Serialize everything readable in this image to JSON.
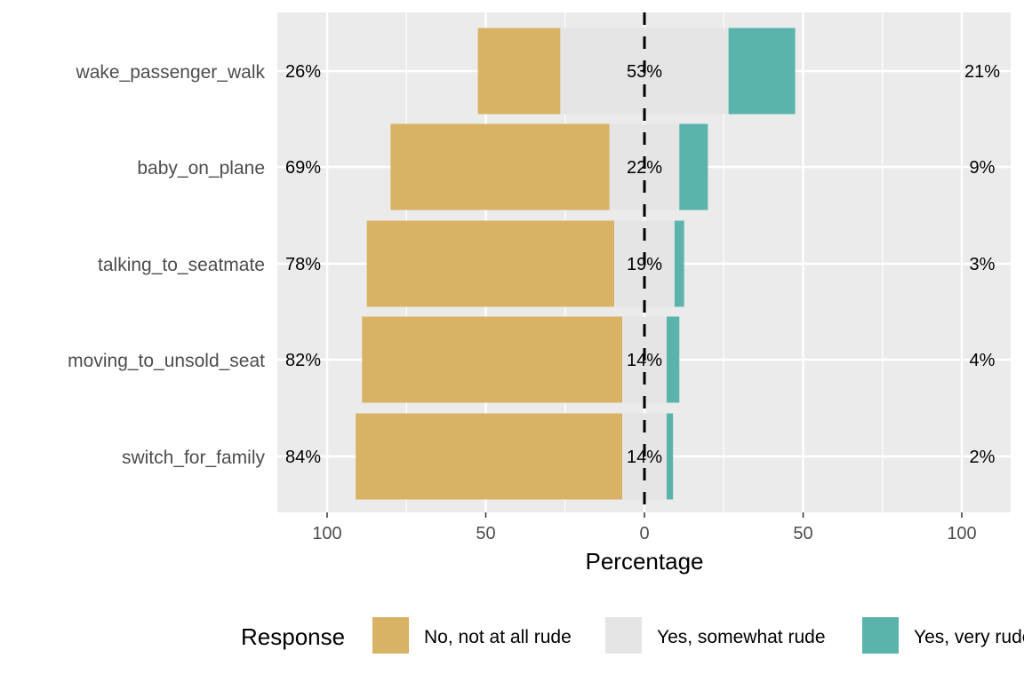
{
  "chart_data": {
    "type": "bar",
    "orientation": "horizontal",
    "layout": "diverging-stacked",
    "categories": [
      "wake_passenger_walk",
      "baby_on_plane",
      "talking_to_seatmate",
      "moving_to_unsold_seat",
      "switch_for_family"
    ],
    "series": [
      {
        "name": "No, not at all rude",
        "color": "#D8B365",
        "values": [
          26,
          69,
          78,
          82,
          84
        ],
        "labels": [
          "26%",
          "69%",
          "78%",
          "82%",
          "84%"
        ]
      },
      {
        "name": "Yes, somewhat rude",
        "color": "#E5E5E5",
        "values": [
          53,
          22,
          19,
          14,
          14
        ],
        "labels": [
          "53%",
          "22%",
          "19%",
          "14%",
          "14%"
        ]
      },
      {
        "name": "Yes, very rude",
        "color": "#5AB4AC",
        "values": [
          21,
          9,
          3,
          4,
          2
        ],
        "labels": [
          "21%",
          "9%",
          "3%",
          "4%",
          "2%"
        ]
      }
    ],
    "xlabel": "Percentage",
    "xlim": [
      -115,
      115
    ],
    "xticks": [
      -100,
      -50,
      0,
      50,
      100
    ],
    "xtick_labels": [
      "100",
      "50",
      "0",
      "50",
      "100"
    ],
    "legend": {
      "title": "Response",
      "position": "bottom"
    },
    "grid": true,
    "zero_line": "dashed"
  }
}
